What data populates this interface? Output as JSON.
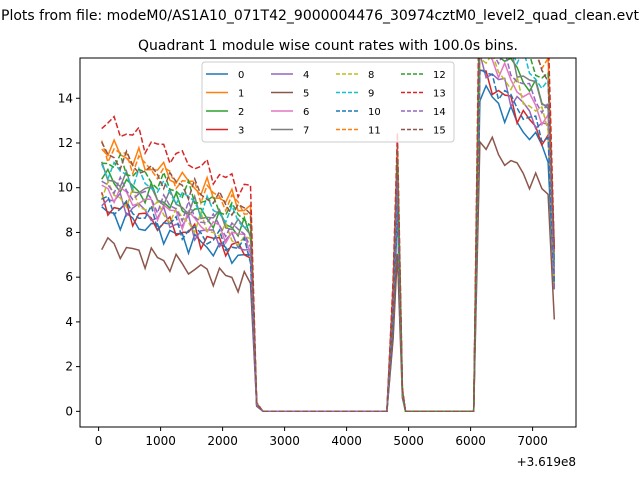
{
  "figure": {
    "suptitle": "Plots from file: modeM0/AS1A10_071T42_9000004476_30974cztM0_level2_quad_clean.evt"
  },
  "chart_data": {
    "type": "line",
    "title": "Quadrant 1 module wise count rates with 100.0s bins.",
    "xlabel": "",
    "ylabel": "",
    "x_offset_label": "+3.619e8",
    "xlim": [
      -300,
      7700
    ],
    "ylim": [
      -0.7,
      15.8
    ],
    "x_ticks": [
      0,
      1000,
      2000,
      3000,
      4000,
      5000,
      6000,
      7000
    ],
    "y_ticks": [
      0,
      2,
      4,
      6,
      8,
      10,
      12,
      14
    ],
    "legend": {
      "placement": "upper-center",
      "ncol": 4
    },
    "x": [
      50,
      150,
      250,
      350,
      450,
      550,
      650,
      750,
      850,
      950,
      1050,
      1150,
      1250,
      1350,
      1450,
      1550,
      1650,
      1750,
      1850,
      1950,
      2050,
      2150,
      2250,
      2350,
      2450,
      2550,
      2650,
      2750,
      2850,
      2950,
      3050,
      3150,
      3250,
      3350,
      3450,
      3550,
      3650,
      3750,
      3850,
      3950,
      4050,
      4150,
      4250,
      4350,
      4450,
      4550,
      4650,
      4750,
      4820,
      4900,
      4950,
      5050,
      5150,
      5250,
      5350,
      5450,
      5550,
      5650,
      5750,
      5850,
      5950,
      6050,
      6150,
      6250,
      6350,
      6450,
      6550,
      6650,
      6750,
      6850,
      6950,
      7050,
      7150,
      7250,
      7350
    ],
    "shape": [
      1.0,
      0.99,
      0.98,
      0.97,
      0.96,
      0.95,
      0.94,
      0.93,
      0.92,
      0.91,
      0.9,
      0.89,
      0.88,
      0.87,
      0.86,
      0.85,
      0.84,
      0.83,
      0.82,
      0.81,
      0.8,
      0.79,
      0.78,
      0.77,
      0.76,
      0.03,
      0,
      0,
      0,
      0,
      0,
      0,
      0,
      0,
      0,
      0,
      0,
      0,
      0,
      0,
      0,
      0,
      0,
      0,
      0,
      0,
      0,
      0.43,
      1.0,
      0.08,
      0,
      0,
      0,
      0,
      0,
      0,
      0,
      0,
      0,
      0,
      0,
      0,
      1.62,
      1.6,
      1.57,
      1.54,
      1.51,
      1.48,
      1.45,
      1.42,
      1.39,
      1.36,
      1.33,
      1.3,
      0.6
    ],
    "series": [
      {
        "name": "0",
        "color": "#1f77b4",
        "dash": "solid",
        "base": 8.9
      },
      {
        "name": "1",
        "color": "#ff7f0e",
        "dash": "solid",
        "base": 11.9
      },
      {
        "name": "2",
        "color": "#2ca02c",
        "dash": "solid",
        "base": 10.5
      },
      {
        "name": "3",
        "color": "#d62728",
        "dash": "solid",
        "base": 9.3
      },
      {
        "name": "4",
        "color": "#9467bd",
        "dash": "solid",
        "base": 9.6
      },
      {
        "name": "5",
        "color": "#8c564b",
        "dash": "solid",
        "base": 7.5
      },
      {
        "name": "6",
        "color": "#e377c2",
        "dash": "solid",
        "base": 10.0
      },
      {
        "name": "7",
        "color": "#7f7f7f",
        "dash": "solid",
        "base": 10.6
      },
      {
        "name": "8",
        "color": "#bcbd22",
        "dash": "dashed",
        "base": 9.9
      },
      {
        "name": "9",
        "color": "#17becf",
        "dash": "dashed",
        "base": 11.0
      },
      {
        "name": "10",
        "color": "#1f77b4",
        "dash": "dashed",
        "base": 9.4
      },
      {
        "name": "11",
        "color": "#ff7f0e",
        "dash": "dashed",
        "base": 11.8
      },
      {
        "name": "12",
        "color": "#2ca02c",
        "dash": "dashed",
        "base": 11.3
      },
      {
        "name": "13",
        "color": "#d62728",
        "dash": "dashed",
        "base": 13.0
      },
      {
        "name": "14",
        "color": "#9467bd",
        "dash": "dashed",
        "base": 10.3
      },
      {
        "name": "15",
        "color": "#8c564b",
        "dash": "dashed",
        "base": 11.6
      }
    ]
  }
}
